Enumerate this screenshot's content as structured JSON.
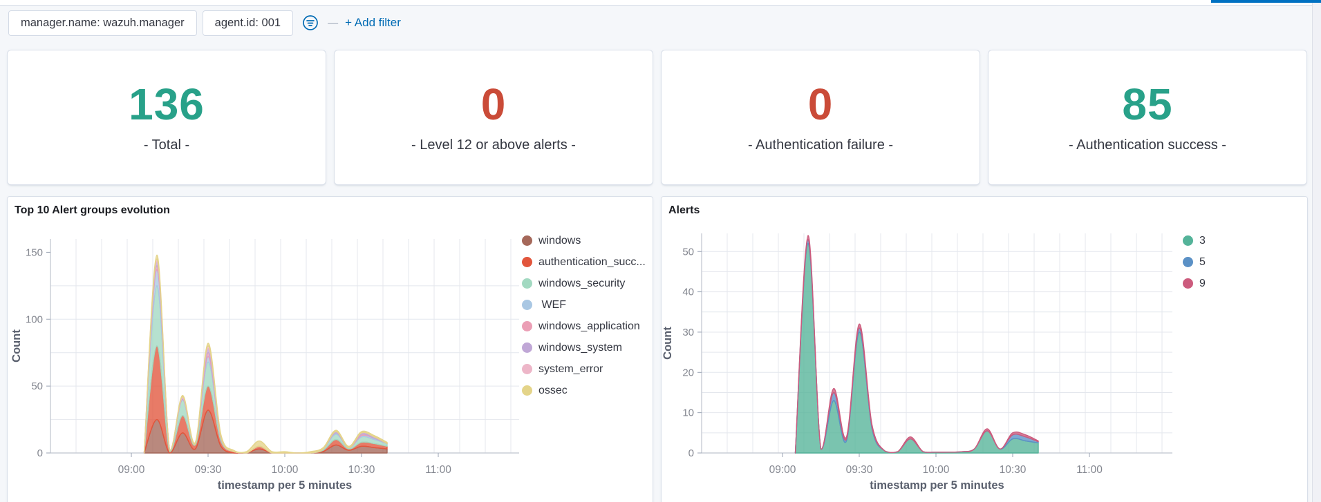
{
  "top_bar": {
    "update_indicator_color": "#0071c2"
  },
  "filter_bar": {
    "filters": [
      {
        "label": "manager.name: wazuh.manager"
      },
      {
        "label": "agent.id: 001"
      }
    ],
    "filter_icon": "filter-options-icon",
    "separator": "—",
    "add_filter_label": "+ Add filter",
    "accent_color": "#006bb4"
  },
  "metrics": [
    {
      "value": "136",
      "label": "- Total -",
      "color": "#28a189"
    },
    {
      "value": "0",
      "label": "- Level 12 or above alerts -",
      "color": "#ca4b38"
    },
    {
      "value": "0",
      "label": "- Authentication failure -",
      "color": "#ca4b38"
    },
    {
      "value": "85",
      "label": "- Authentication success -",
      "color": "#28a189"
    }
  ],
  "chart_data": [
    {
      "type": "area",
      "stacked": true,
      "title": "Top 10 Alert groups evolution",
      "xlabel": "timestamp per 5 minutes",
      "ylabel": "Count",
      "x_tick_labels": [
        "09:00",
        "09:30",
        "10:00",
        "10:30",
        "11:00"
      ],
      "x_tick_minutes": [
        0,
        30,
        60,
        90,
        120
      ],
      "y_ticks": [
        0,
        50,
        100,
        150
      ],
      "y_grid_step": 25,
      "ylim": [
        0,
        160
      ],
      "grid": true,
      "legend_position": "right",
      "x_minutes": [
        5,
        10,
        15,
        20,
        25,
        30,
        35,
        40,
        45,
        50,
        55,
        60,
        65,
        70,
        75,
        80,
        85,
        90,
        95,
        100
      ],
      "series": [
        {
          "name": "windows",
          "color": "#a5685a",
          "values": [
            0,
            25,
            0,
            15,
            3,
            32,
            5,
            0,
            0,
            3,
            0,
            0,
            0,
            0,
            1,
            6,
            2,
            5,
            4,
            3
          ]
        },
        {
          "name": "authentication_succ...",
          "color": "#e2563c",
          "values": [
            0,
            55,
            1,
            13,
            3,
            18,
            4,
            1,
            0,
            2,
            0,
            0,
            0,
            0,
            1,
            4,
            1,
            3,
            3,
            2
          ]
        },
        {
          "name": "windows_security",
          "color": "#a2d9c1",
          "values": [
            0,
            45,
            1,
            12,
            1,
            18,
            2,
            0,
            0,
            0,
            0,
            0,
            0,
            0,
            1,
            4,
            1,
            4,
            3,
            2
          ]
        },
        {
          "name": " WEF",
          "color": "#a9c7e3",
          "values": [
            0,
            12,
            0,
            0,
            0,
            4,
            0,
            0,
            0,
            0,
            0,
            0,
            0,
            0,
            0,
            1,
            0,
            1,
            1,
            0
          ]
        },
        {
          "name": "windows_application",
          "color": "#eb9eb5",
          "values": [
            0,
            3,
            0,
            0,
            0,
            3,
            0,
            0,
            0,
            0,
            0,
            0,
            0,
            0,
            0,
            0,
            0,
            1,
            0,
            0
          ]
        },
        {
          "name": "windows_system",
          "color": "#c0a7d6",
          "values": [
            0,
            3,
            0,
            1,
            0,
            3,
            1,
            0,
            0,
            0,
            0,
            0,
            0,
            0,
            0,
            1,
            0,
            1,
            1,
            0
          ]
        },
        {
          "name": "system_error",
          "color": "#edb6c8",
          "values": [
            0,
            2,
            0,
            1,
            0,
            2,
            0,
            0,
            0,
            0,
            0,
            0,
            0,
            0,
            0,
            0,
            0,
            0,
            0,
            0
          ]
        },
        {
          "name": "ossec",
          "color": "#e4d489",
          "values": [
            0,
            3,
            0,
            1,
            1,
            2,
            2,
            1,
            1,
            4,
            1,
            1,
            0,
            1,
            1,
            1,
            1,
            1,
            1,
            1
          ]
        }
      ]
    },
    {
      "type": "area",
      "stacked": true,
      "title": "Alerts",
      "xlabel": "timestamp per 5 minutes",
      "ylabel": "Count",
      "x_tick_labels": [
        "09:00",
        "09:30",
        "10:00",
        "10:30",
        "11:00"
      ],
      "x_tick_minutes": [
        0,
        30,
        60,
        90,
        120
      ],
      "y_ticks": [
        0,
        10,
        20,
        30,
        40,
        50
      ],
      "y_grid_step": 5,
      "ylim": [
        0,
        54.5
      ],
      "grid": true,
      "legend_position": "right",
      "x_minutes": [
        5,
        10,
        15,
        20,
        25,
        30,
        35,
        40,
        45,
        50,
        55,
        60,
        65,
        70,
        75,
        80,
        85,
        90,
        95,
        100
      ],
      "series": [
        {
          "name": "3",
          "color": "#54b399",
          "values": [
            0,
            52,
            1,
            13,
            3,
            30,
            6,
            0.5,
            0.3,
            3.5,
            0.3,
            0.2,
            0.2,
            0.3,
            1,
            5.5,
            1,
            3.5,
            3,
            2.5
          ]
        },
        {
          "name": "5",
          "color": "#5b91c6",
          "values": [
            0,
            1,
            0,
            2,
            0.5,
            1,
            0.5,
            0,
            0,
            0,
            0,
            0,
            0,
            0,
            0,
            0,
            0,
            1,
            1,
            0.3
          ]
        },
        {
          "name": "9",
          "color": "#cc5b7d",
          "values": [
            0,
            1,
            0,
            1,
            0.5,
            1,
            0.5,
            0,
            0,
            0.5,
            0,
            0,
            0,
            0,
            0,
            0.5,
            0,
            0.5,
            0.5,
            0.2
          ]
        }
      ]
    }
  ]
}
